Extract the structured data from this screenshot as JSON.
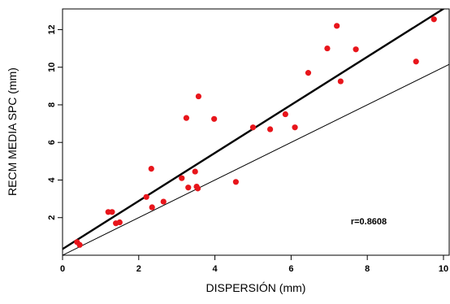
{
  "chart_data": {
    "type": "scatter",
    "xlabel": "DISPERSIÓN (mm)",
    "ylabel": "RECM   MEDIA SPC (mm)",
    "xlim": [
      0,
      10.15
    ],
    "ylim": [
      0,
      13.1
    ],
    "x_ticks": [
      "0",
      "2",
      "4",
      "6",
      "8",
      "10"
    ],
    "y_ticks": [
      "2",
      "4",
      "6",
      "8",
      "10",
      "12"
    ],
    "annotation": "r=0.8608",
    "points": [
      {
        "x": 0.38,
        "y": 0.7
      },
      {
        "x": 0.45,
        "y": 0.55
      },
      {
        "x": 1.2,
        "y": 2.3
      },
      {
        "x": 1.3,
        "y": 2.3
      },
      {
        "x": 1.4,
        "y": 1.7
      },
      {
        "x": 1.5,
        "y": 1.75
      },
      {
        "x": 2.2,
        "y": 3.1
      },
      {
        "x": 2.33,
        "y": 4.6
      },
      {
        "x": 2.35,
        "y": 2.55
      },
      {
        "x": 2.65,
        "y": 2.85
      },
      {
        "x": 3.13,
        "y": 4.1
      },
      {
        "x": 3.25,
        "y": 7.3
      },
      {
        "x": 3.3,
        "y": 3.6
      },
      {
        "x": 3.48,
        "y": 4.45
      },
      {
        "x": 3.52,
        "y": 3.65
      },
      {
        "x": 3.55,
        "y": 3.55
      },
      {
        "x": 3.57,
        "y": 8.45
      },
      {
        "x": 3.98,
        "y": 7.25
      },
      {
        "x": 4.55,
        "y": 3.9
      },
      {
        "x": 5.0,
        "y": 6.8
      },
      {
        "x": 5.45,
        "y": 6.7
      },
      {
        "x": 5.85,
        "y": 7.5
      },
      {
        "x": 6.1,
        "y": 6.8
      },
      {
        "x": 6.45,
        "y": 9.7
      },
      {
        "x": 6.95,
        "y": 11.0
      },
      {
        "x": 7.2,
        "y": 12.2
      },
      {
        "x": 7.3,
        "y": 9.25
      },
      {
        "x": 7.7,
        "y": 10.95
      },
      {
        "x": 9.28,
        "y": 10.3
      },
      {
        "x": 9.75,
        "y": 12.55
      }
    ],
    "lines": [
      {
        "kind": "regression",
        "x": [
          0,
          10.15
        ],
        "y": [
          0.33,
          13.3
        ],
        "width": "thick"
      },
      {
        "kind": "one-to-one",
        "x": [
          0,
          10.15
        ],
        "y": [
          0,
          10.15
        ],
        "width": "thin"
      }
    ],
    "colors": {
      "points": "#e8151b",
      "lines": "#000000",
      "frame": "#000000"
    },
    "grid": false,
    "legend": "none"
  }
}
